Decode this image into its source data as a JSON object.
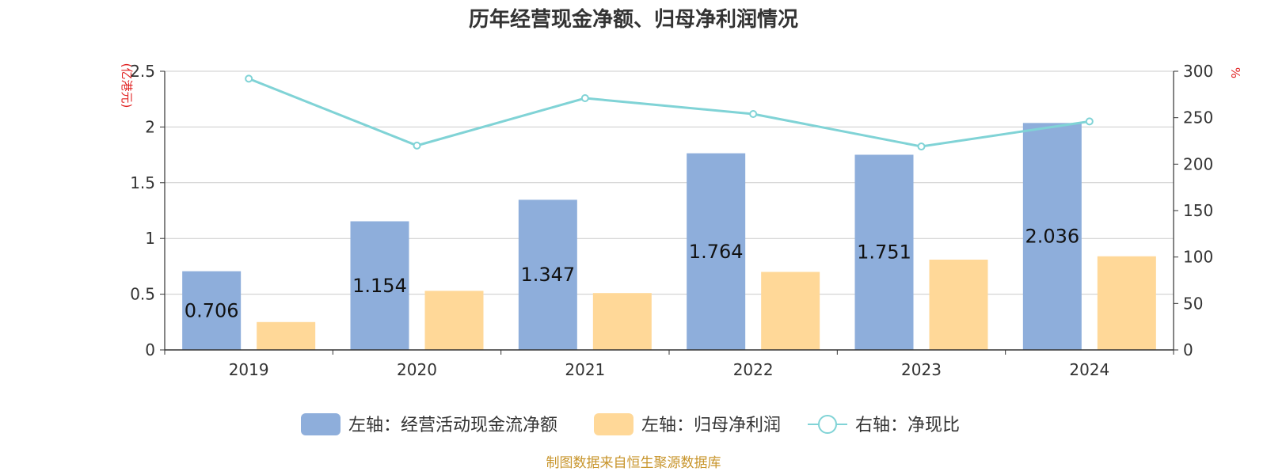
{
  "chart_data": {
    "type": "bar",
    "title": "历年经营现金净额、归母净利润情况",
    "categories": [
      "2019",
      "2020",
      "2021",
      "2022",
      "2023",
      "2024"
    ],
    "left_axis": {
      "unit": "(亿港元)",
      "ylim": [
        0,
        2.5
      ],
      "ticks": [
        "0",
        "0.5",
        "1",
        "1.5",
        "2",
        "2.5"
      ],
      "tick_values": [
        0,
        0.5,
        1,
        1.5,
        2,
        2.5
      ]
    },
    "right_axis": {
      "unit": "%",
      "ylim": [
        0,
        300
      ],
      "ticks": [
        "0",
        "50",
        "100",
        "150",
        "200",
        "250",
        "300"
      ],
      "tick_values": [
        0,
        50,
        100,
        150,
        200,
        250,
        300
      ]
    },
    "series": [
      {
        "name": "左轴：经营活动现金流净额",
        "type": "bar",
        "axis": "left",
        "color": "#8eaedb",
        "values": [
          0.706,
          1.154,
          1.347,
          1.764,
          1.751,
          2.036
        ],
        "labels": [
          "0.706",
          "1.154",
          "1.347",
          "1.764",
          "1.751",
          "2.036"
        ]
      },
      {
        "name": "左轴：归母净利润",
        "type": "bar",
        "axis": "left",
        "color": "#ffd898",
        "values": [
          0.25,
          0.53,
          0.51,
          0.7,
          0.81,
          0.84
        ]
      },
      {
        "name": "右轴：净现比",
        "type": "line",
        "axis": "right",
        "color": "#80d3d6",
        "values": [
          292,
          220,
          271,
          254,
          219,
          246
        ]
      }
    ],
    "grid": true,
    "legend_position": "bottom"
  },
  "footer": {
    "source": "制图数据来自恒生聚源数据库",
    "color": "#c8952c"
  },
  "colors": {
    "unit": "#e02020",
    "axis": "#333333",
    "grid": "#cccccc"
  }
}
